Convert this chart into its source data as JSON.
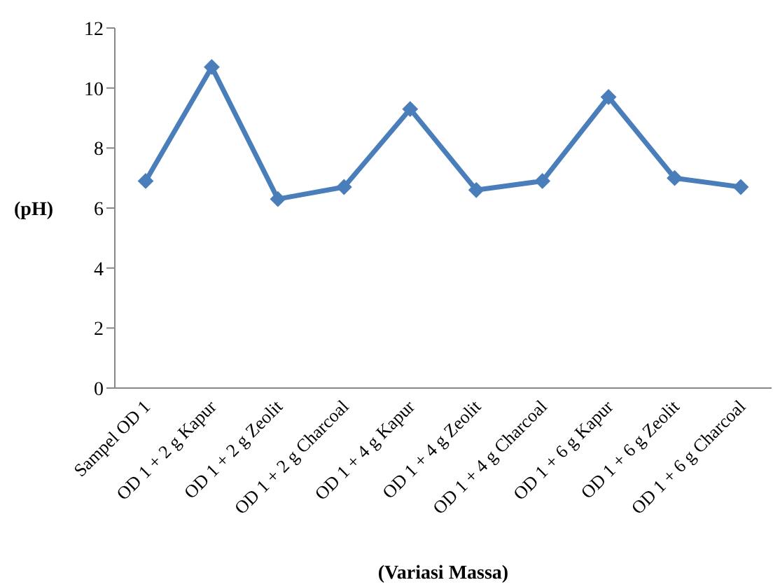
{
  "chart_data": {
    "type": "line",
    "xlabel": "(Variasi Massa)",
    "ylabel": "(pH)",
    "categories": [
      "Sampel OD 1",
      "OD 1 + 2 g Kapur",
      "OD 1 + 2 g Zeolit",
      "OD 1 + 2 g Charcoal",
      "OD 1 + 4 g Kapur",
      "OD 1 + 4 g Zeolit",
      "OD 1 + 4 g Charcoal",
      "OD 1 + 6 g Kapur",
      "OD 1 + 6 g Zeolit",
      "OD 1 + 6 g Charcoal"
    ],
    "series": [
      {
        "color": "#4a7ebb",
        "values": [
          6.9,
          10.7,
          6.3,
          6.7,
          9.3,
          6.6,
          6.9,
          9.7,
          7.0,
          6.7
        ]
      }
    ],
    "ylim": [
      0,
      12
    ],
    "yticks": [
      0,
      2,
      4,
      6,
      8,
      10,
      12
    ],
    "grid": false,
    "legend": false,
    "marker": "diamond",
    "line_style": "solid"
  }
}
